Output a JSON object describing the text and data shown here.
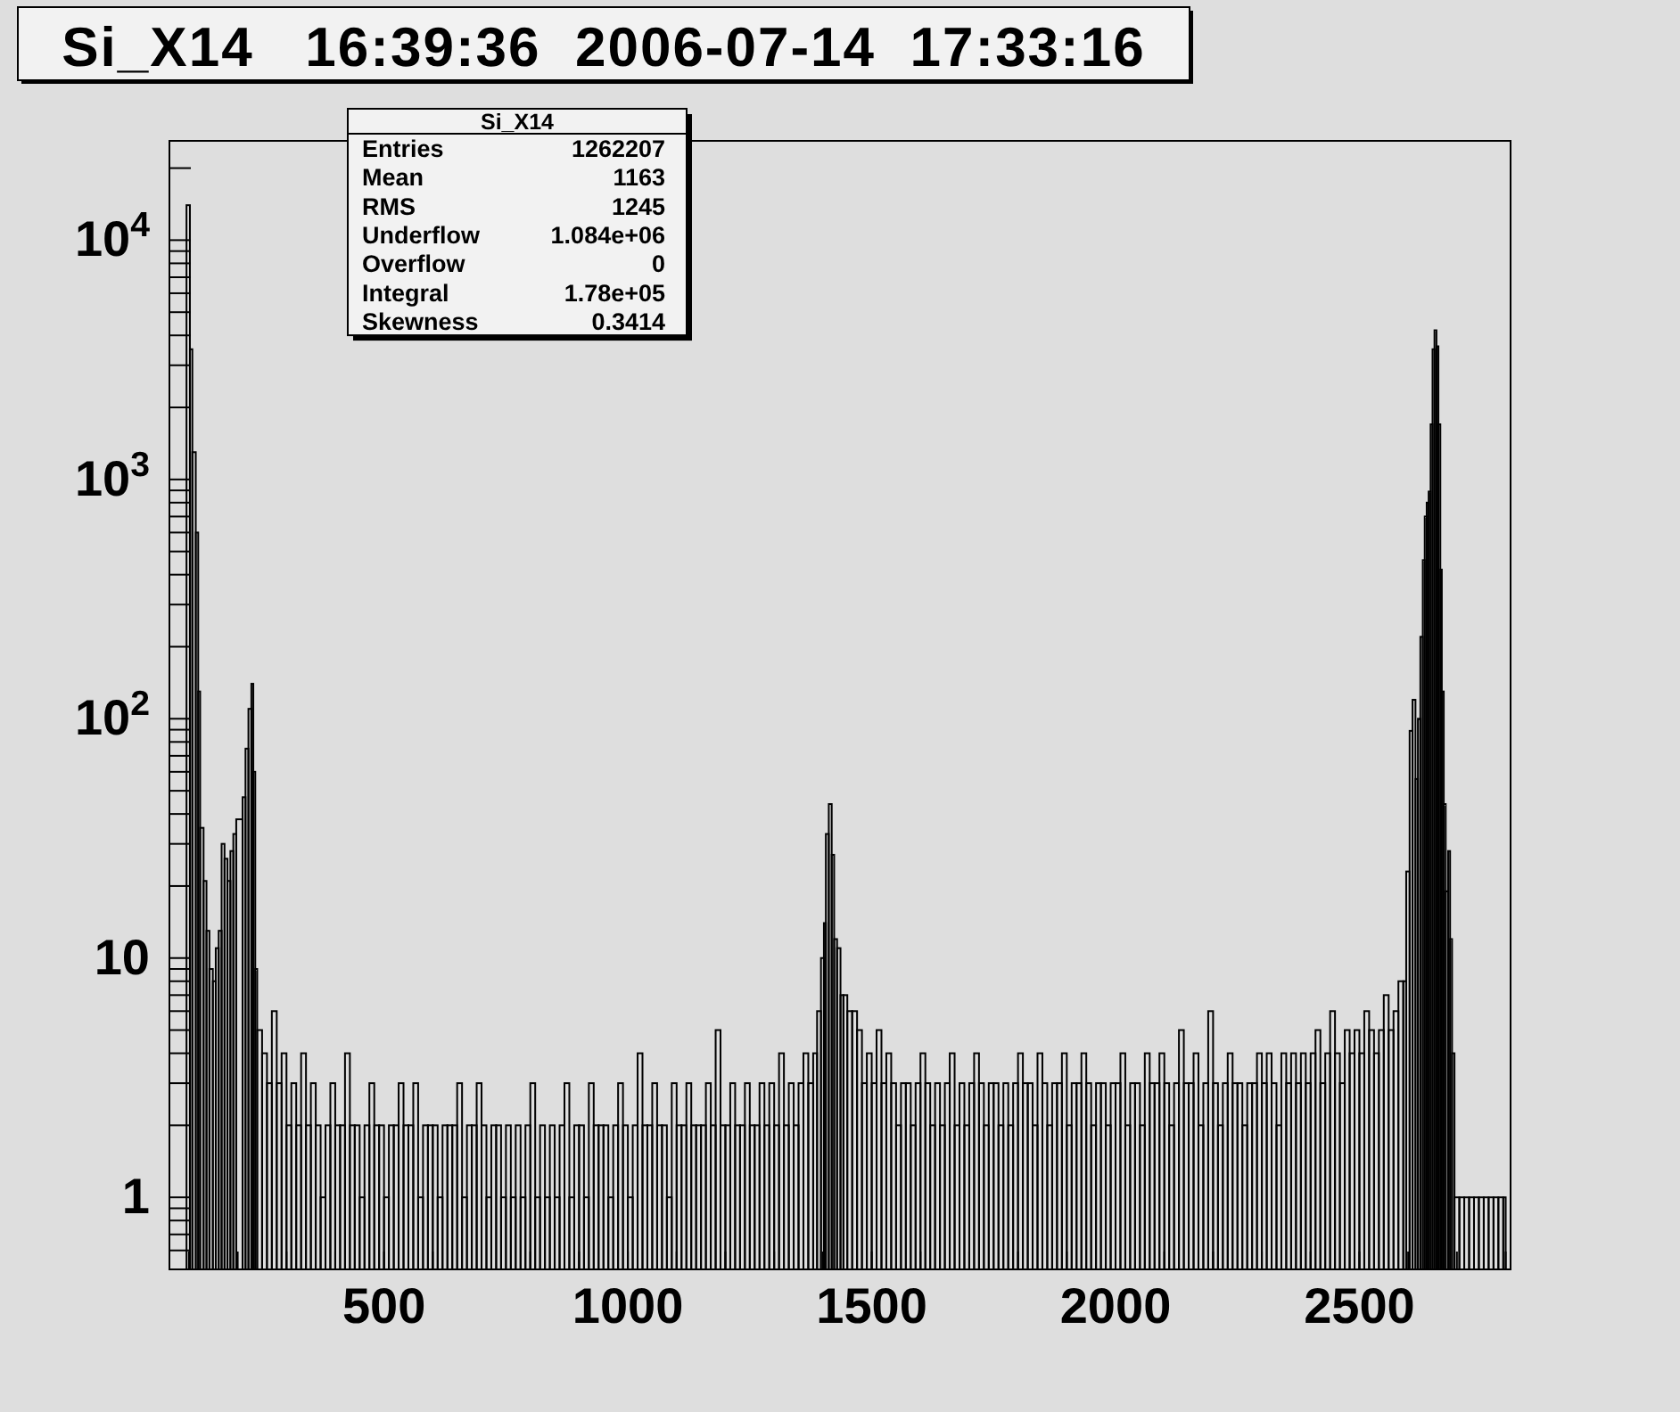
{
  "chart_data": {
    "type": "histogram",
    "title": "Si_X14   16:39:36  2006-07-14  17:33:16",
    "annotations": [
      "Si_X14",
      "Entries 1262207",
      "Mean 1163",
      "RMS 1245",
      "Underflow 1.084e+06",
      "Overflow 0",
      "Integral 1.78e+05",
      "Skewness 0.3414"
    ],
    "color": "#000000",
    "log": true,
    "xlim": [
      60,
      2810
    ],
    "xticks": [
      {
        "value": 100,
        "label": null
      },
      {
        "value": 200,
        "label": null
      },
      {
        "value": 300,
        "label": null
      },
      {
        "value": 400,
        "label": null
      },
      500,
      {
        "value": 600,
        "label": null
      },
      {
        "value": 700,
        "label": null
      },
      {
        "value": 800,
        "label": null
      },
      {
        "value": 900,
        "label": null
      },
      1000,
      {
        "value": 1100,
        "label": null
      },
      {
        "value": 1200,
        "label": null
      },
      {
        "value": 1300,
        "label": null
      },
      {
        "value": 1400,
        "label": null
      },
      1500,
      {
        "value": 1600,
        "label": null
      },
      {
        "value": 1700,
        "label": null
      },
      {
        "value": 1800,
        "label": null
      },
      {
        "value": 1900,
        "label": null
      },
      2000,
      {
        "value": 2100,
        "label": null
      },
      {
        "value": 2200,
        "label": null
      },
      {
        "value": 2300,
        "label": null
      },
      {
        "value": 2400,
        "label": null
      },
      2500,
      {
        "value": 2600,
        "label": null
      },
      {
        "value": 2700,
        "label": null
      },
      {
        "value": 2800,
        "label": null
      }
    ],
    "ylim": [
      0.5,
      26000
    ],
    "yticks": [
      {
        "value": 0.6,
        "label": null
      },
      {
        "value": 0.7,
        "label": null
      },
      {
        "value": 0.8,
        "label": null
      },
      {
        "value": 0.9,
        "label": null
      },
      1,
      {
        "value": 2,
        "label": null
      },
      {
        "value": 3,
        "label": null
      },
      {
        "value": 4,
        "label": null
      },
      {
        "value": 5,
        "label": null
      },
      {
        "value": 6,
        "label": null
      },
      {
        "value": 7,
        "label": null
      },
      {
        "value": 8,
        "label": null
      },
      {
        "value": 9,
        "label": null
      },
      10,
      {
        "value": 20,
        "label": null
      },
      {
        "value": 30,
        "label": null
      },
      {
        "value": 40,
        "label": null
      },
      {
        "value": 50,
        "label": null
      },
      {
        "value": 60,
        "label": null
      },
      {
        "value": 70,
        "label": null
      },
      {
        "value": 80,
        "label": null
      },
      {
        "value": 90,
        "label": null
      },
      {
        "value": 100,
        "label": "10$^{2}$"
      },
      {
        "value": 200,
        "label": null
      },
      {
        "value": 300,
        "label": null
      },
      {
        "value": 400,
        "label": null
      },
      {
        "value": 500,
        "label": null
      },
      {
        "value": 600,
        "label": null
      },
      {
        "value": 700,
        "label": null
      },
      {
        "value": 800,
        "label": null
      },
      {
        "value": 900,
        "label": null
      },
      {
        "value": 1000,
        "label": "10$^{3}$"
      },
      {
        "value": 2000,
        "label": null
      },
      {
        "value": 3000,
        "label": null
      },
      {
        "value": 4000,
        "label": null
      },
      {
        "value": 5000,
        "label": null
      },
      {
        "value": 6000,
        "label": null
      },
      {
        "value": 7000,
        "label": null
      },
      {
        "value": 8000,
        "label": null
      },
      {
        "value": 9000,
        "label": null
      },
      {
        "value": 10000,
        "label": "10$^{4}$"
      },
      {
        "value": 20000,
        "label": null
      }
    ],
    "bins": [
      95,
      102,
      107,
      114,
      119,
      123,
      130,
      136,
      142,
      149,
      155,
      161,
      167,
      173,
      179,
      185,
      191,
      197,
      210,
      216,
      222,
      228,
      232,
      236,
      240,
      250,
      260,
      270,
      280,
      290,
      300,
      310,
      320,
      330,
      340,
      350,
      360,
      370,
      380,
      390,
      400,
      410,
      420,
      430,
      440,
      450,
      460,
      470,
      480,
      490,
      500,
      510,
      520,
      530,
      540,
      550,
      560,
      570,
      580,
      590,
      600,
      610,
      620,
      630,
      640,
      650,
      660,
      670,
      680,
      690,
      700,
      710,
      720,
      730,
      740,
      750,
      760,
      770,
      780,
      790,
      800,
      810,
      820,
      830,
      840,
      850,
      860,
      870,
      880,
      890,
      900,
      910,
      920,
      930,
      940,
      950,
      960,
      970,
      980,
      990,
      1000,
      1010,
      1020,
      1030,
      1040,
      1050,
      1060,
      1070,
      1080,
      1090,
      1100,
      1110,
      1120,
      1130,
      1140,
      1150,
      1160,
      1170,
      1180,
      1190,
      1200,
      1210,
      1220,
      1230,
      1240,
      1250,
      1260,
      1270,
      1280,
      1290,
      1300,
      1310,
      1320,
      1330,
      1340,
      1350,
      1360,
      1370,
      1380,
      1388,
      1396,
      1402,
      1406,
      1412,
      1418,
      1423,
      1429,
      1436,
      1442,
      1450,
      1460,
      1470,
      1480,
      1490,
      1500,
      1510,
      1520,
      1530,
      1540,
      1550,
      1560,
      1570,
      1580,
      1590,
      1600,
      1610,
      1620,
      1630,
      1640,
      1650,
      1660,
      1670,
      1680,
      1690,
      1700,
      1710,
      1720,
      1730,
      1740,
      1750,
      1760,
      1770,
      1780,
      1790,
      1800,
      1810,
      1820,
      1830,
      1840,
      1850,
      1860,
      1870,
      1880,
      1890,
      1900,
      1910,
      1920,
      1930,
      1940,
      1950,
      1960,
      1970,
      1980,
      1990,
      2000,
      2010,
      2020,
      2030,
      2040,
      2050,
      2060,
      2070,
      2080,
      2090,
      2100,
      2110,
      2120,
      2130,
      2140,
      2150,
      2160,
      2170,
      2180,
      2190,
      2200,
      2210,
      2220,
      2230,
      2240,
      2250,
      2260,
      2270,
      2280,
      2290,
      2300,
      2310,
      2320,
      2330,
      2340,
      2350,
      2360,
      2370,
      2380,
      2390,
      2400,
      2410,
      2420,
      2430,
      2440,
      2450,
      2460,
      2470,
      2480,
      2490,
      2500,
      2510,
      2520,
      2530,
      2540,
      2550,
      2560,
      2570,
      2580,
      2590,
      2596,
      2603,
      2609,
      2615,
      2620,
      2625,
      2630,
      2634,
      2638,
      2642,
      2646,
      2650,
      2654,
      2658,
      2662,
      2666,
      2669,
      2673,
      2677,
      2682,
      2686,
      2690,
      2695,
      2705,
      2715,
      2725,
      2735,
      2745,
      2755,
      2765,
      2775,
      2785,
      2795,
      2800
    ],
    "values": [
      14000,
      3500,
      1300,
      600,
      130,
      35,
      21,
      13,
      9,
      8,
      11,
      13,
      30,
      26,
      21,
      28,
      33,
      38,
      47,
      75,
      110,
      140,
      60,
      9,
      5,
      4,
      3,
      6,
      3,
      4,
      2,
      3,
      2,
      4,
      2,
      3,
      2,
      1,
      2,
      3,
      2,
      2,
      4,
      2,
      2,
      1,
      2,
      3,
      2,
      2,
      1,
      2,
      2,
      3,
      2,
      2,
      3,
      1,
      2,
      2,
      2,
      1,
      2,
      2,
      2,
      3,
      1,
      2,
      2,
      3,
      2,
      1,
      2,
      2,
      1,
      2,
      1,
      2,
      1,
      2,
      3,
      1,
      2,
      1,
      2,
      1,
      2,
      3,
      1,
      2,
      2,
      1,
      3,
      2,
      2,
      2,
      1,
      2,
      3,
      2,
      1,
      2,
      4,
      2,
      2,
      3,
      2,
      2,
      1,
      3,
      2,
      2,
      3,
      2,
      2,
      2,
      3,
      2,
      5,
      2,
      2,
      3,
      2,
      2,
      3,
      2,
      2,
      3,
      2,
      3,
      2,
      4,
      2,
      3,
      2,
      3,
      4,
      3,
      4,
      6,
      10,
      14,
      33,
      44,
      27,
      12,
      11,
      7,
      7,
      6,
      6,
      5,
      3,
      4,
      3,
      5,
      3,
      4,
      3,
      2,
      3,
      3,
      2,
      3,
      4,
      3,
      2,
      3,
      2,
      3,
      4,
      2,
      3,
      2,
      3,
      4,
      3,
      2,
      3,
      3,
      2,
      3,
      2,
      3,
      4,
      3,
      3,
      2,
      4,
      3,
      2,
      3,
      3,
      4,
      2,
      3,
      3,
      4,
      3,
      2,
      3,
      3,
      2,
      3,
      3,
      4,
      2,
      3,
      3,
      2,
      4,
      3,
      3,
      4,
      3,
      2,
      3,
      5,
      3,
      3,
      4,
      2,
      3,
      6,
      3,
      2,
      3,
      4,
      3,
      3,
      2,
      3,
      3,
      4,
      3,
      4,
      3,
      2,
      4,
      3,
      4,
      3,
      4,
      3,
      4,
      5,
      3,
      4,
      6,
      4,
      3,
      5,
      4,
      5,
      4,
      6,
      5,
      4,
      5,
      7,
      5,
      6,
      8,
      8,
      23,
      89,
      120,
      56,
      100,
      220,
      460,
      700,
      800,
      890,
      1700,
      3500,
      4200,
      3600,
      1700,
      420,
      130,
      44,
      19,
      28,
      12,
      4,
      1,
      1,
      1,
      1,
      1,
      1,
      1,
      1,
      1,
      1,
      1
    ]
  }
}
